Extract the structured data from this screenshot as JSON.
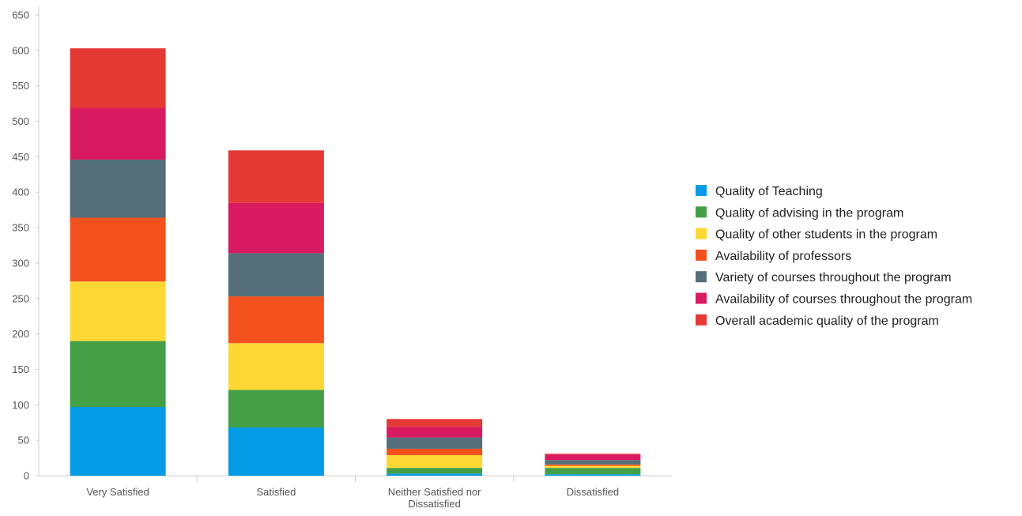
{
  "chart_data": {
    "type": "bar",
    "stacked": true,
    "title": "",
    "xlabel": "",
    "ylabel": "",
    "ylim": [
      0,
      650
    ],
    "yticks": [
      0,
      50,
      100,
      150,
      200,
      250,
      300,
      350,
      400,
      450,
      500,
      550,
      600,
      650
    ],
    "grid": false,
    "legend_position": "right",
    "categories": [
      [
        "Very Satisfied"
      ],
      [
        "Satisfied"
      ],
      [
        "Neither Satisfied nor",
        "Dissatisfied"
      ],
      [
        "Dissatisfied"
      ]
    ],
    "series": [
      {
        "name": "Quality of Teaching",
        "color": "#039BE5",
        "values": [
          97,
          68,
          3,
          2
        ]
      },
      {
        "name": "Quality of advising in the program",
        "color": "#43A047",
        "values": [
          93,
          53,
          8,
          9
        ]
      },
      {
        "name": "Quality of other students in the program",
        "color": "#FDD835",
        "values": [
          84,
          66,
          18,
          3
        ]
      },
      {
        "name": "Availability of professors",
        "color": "#F4511E",
        "values": [
          90,
          66,
          9,
          2
        ]
      },
      {
        "name": "Variety of courses throughout the program",
        "color": "#546E7A",
        "values": [
          82,
          61,
          16,
          6
        ]
      },
      {
        "name": "Availability of courses throughout the program",
        "color": "#D81B60",
        "values": [
          73,
          71,
          15,
          8
        ]
      },
      {
        "name": "Overall academic quality of the program",
        "color": "#E53935",
        "values": [
          84,
          74,
          11,
          1
        ]
      }
    ]
  }
}
